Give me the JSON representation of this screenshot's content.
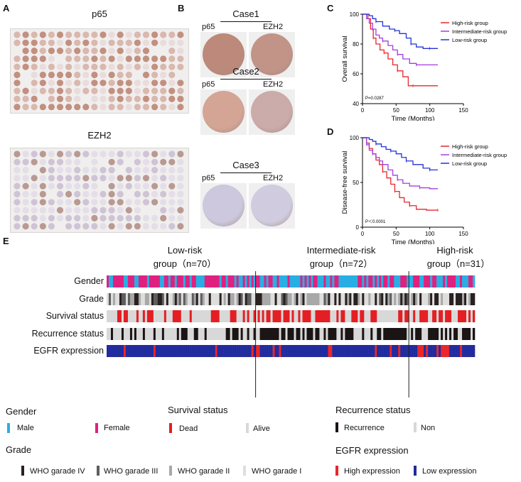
{
  "panel_labels": {
    "a": "A",
    "b": "B",
    "c": "C",
    "d": "D",
    "e": "E"
  },
  "panelA": {
    "title_top": "p65",
    "title_bottom": "EZH2"
  },
  "panelB": {
    "cases": [
      {
        "title": "Case1",
        "left": "p65",
        "right": "EZH2"
      },
      {
        "title": "Case2",
        "left": "p65",
        "right": "EZH2"
      },
      {
        "title": "Case3",
        "left": "p65",
        "right": "EZH2"
      }
    ]
  },
  "colors": {
    "high": "#e8262b",
    "intermediate": "#a23ee0",
    "low": "#2233d6",
    "male": "#29aee3",
    "female": "#e0207f",
    "dead": "#e41f23",
    "alive": "#d8d8d8",
    "recurrence": "#1b1414",
    "non": "#d8d8d8",
    "egfr_high": "#e8262b",
    "egfr_low": "#202a9c",
    "who4": "#2a2020",
    "who3": "#5e5e5e",
    "who2": "#a8a8a8",
    "who1": "#dedede"
  },
  "chart_data": [
    {
      "type": "line",
      "title": "",
      "xlabel": "Time (Months)",
      "ylabel": "Overall survival",
      "xlim": [
        0,
        150
      ],
      "ylim": [
        40,
        100
      ],
      "xticks": [
        "0",
        "50",
        "100",
        "150"
      ],
      "yticks": [
        "40",
        "60",
        "80",
        "100"
      ],
      "annotation": "P=0.0287",
      "legend": [
        "High-risk group",
        "Intermediate-risk group",
        "Low-risk group"
      ],
      "series": [
        {
          "name": "High-risk group",
          "x": [
            0,
            8,
            12,
            16,
            20,
            26,
            32,
            38,
            45,
            52,
            60,
            68,
            75,
            90,
            112
          ],
          "values": [
            100,
            97,
            90,
            84,
            80,
            76,
            74,
            70,
            66,
            62,
            58,
            52,
            52,
            52,
            52
          ]
        },
        {
          "name": "Intermediate-risk group",
          "x": [
            0,
            6,
            10,
            15,
            20,
            25,
            30,
            38,
            45,
            52,
            60,
            70,
            80,
            95,
            112
          ],
          "values": [
            100,
            97,
            94,
            90,
            86,
            84,
            82,
            79,
            76,
            73,
            70,
            67,
            66,
            66,
            66
          ]
        },
        {
          "name": "Low-risk group",
          "x": [
            0,
            10,
            15,
            20,
            30,
            40,
            48,
            55,
            65,
            72,
            80,
            90,
            100,
            112
          ],
          "values": [
            100,
            99,
            97,
            95,
            92,
            90,
            89,
            87,
            84,
            80,
            78,
            77,
            77,
            77
          ]
        }
      ]
    },
    {
      "type": "line",
      "title": "",
      "xlabel": "Time (Months)",
      "ylabel": "Disease-free survival",
      "xlim": [
        0,
        150
      ],
      "ylim": [
        0,
        100
      ],
      "xticks": [
        "0",
        "50",
        "100",
        "150"
      ],
      "yticks": [
        "0",
        "50",
        "100"
      ],
      "annotation": "P＜0.0001",
      "legend": [
        "High-risk group",
        "Intermediate-risk group",
        "Low-risk group"
      ],
      "series": [
        {
          "name": "High-risk group",
          "x": [
            0,
            6,
            10,
            15,
            20,
            25,
            30,
            36,
            42,
            48,
            55,
            62,
            70,
            80,
            95,
            112
          ],
          "values": [
            100,
            94,
            88,
            82,
            75,
            70,
            62,
            55,
            48,
            40,
            33,
            28,
            24,
            20,
            19,
            19
          ]
        },
        {
          "name": "Intermediate-risk group",
          "x": [
            0,
            6,
            10,
            15,
            20,
            25,
            30,
            38,
            45,
            52,
            60,
            70,
            85,
            100,
            112
          ],
          "values": [
            100,
            92,
            86,
            82,
            78,
            74,
            70,
            64,
            58,
            53,
            49,
            46,
            44,
            43,
            43
          ]
        },
        {
          "name": "Low-risk group",
          "x": [
            0,
            10,
            15,
            20,
            28,
            35,
            42,
            50,
            58,
            65,
            75,
            90,
            100,
            112
          ],
          "values": [
            100,
            98,
            96,
            93,
            90,
            87,
            85,
            82,
            78,
            74,
            70,
            66,
            64,
            64
          ]
        }
      ]
    }
  ],
  "panelE": {
    "groups": [
      {
        "line1": "Low-risk",
        "line2": "group（n=70）"
      },
      {
        "line1": "Intermediate-risk",
        "line2": "group（n=72）"
      },
      {
        "line1": "High-risk",
        "line2": "group（n=31）"
      }
    ],
    "tracks": [
      "Gender",
      "Grade",
      "Survival status",
      "Recurrence status",
      "EGFR expression"
    ],
    "legend": {
      "gender_title": "Gender",
      "male": "Male",
      "female": "Female",
      "survival_title": "Survival status",
      "dead": "Dead",
      "alive": "Alive",
      "recurrence_title": "Recurrence status",
      "recurrence": "Recurrence",
      "non": "Non",
      "grade_title": "Grade",
      "who4": "WHO garade IV",
      "who3": "WHO garade III",
      "who2": "WHO garade II",
      "who1": "WHO garade I",
      "egfr_title": "EGFR expression",
      "egfr_high": "High expression",
      "egfr_low": "Low expression"
    }
  }
}
